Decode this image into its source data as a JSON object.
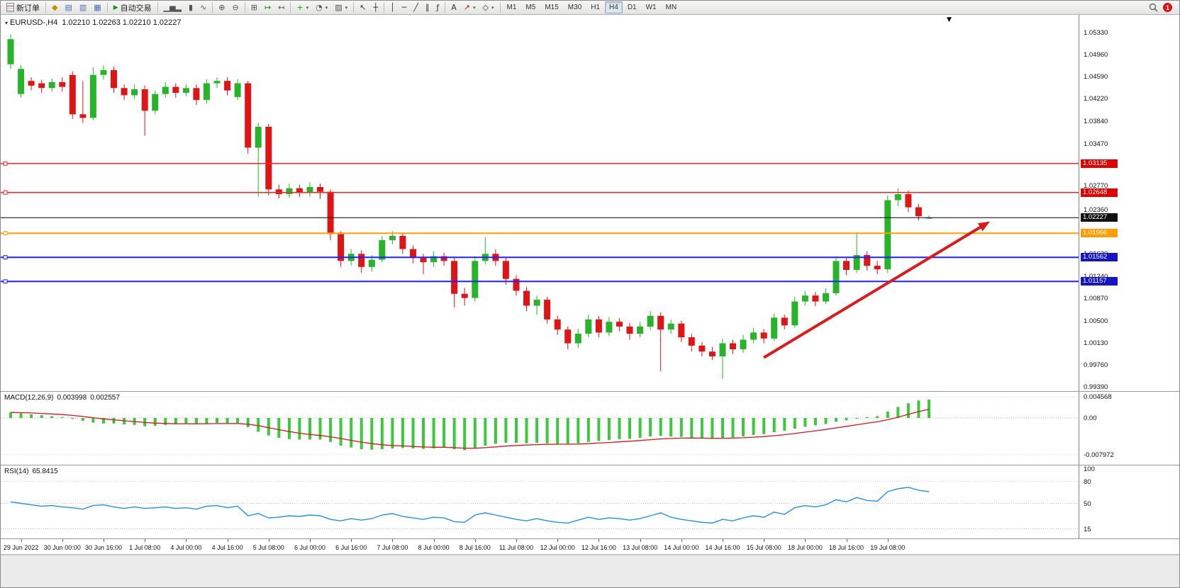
{
  "toolbar": {
    "new_order_label": "新订单",
    "auto_trading_label": "自动交易",
    "notification_badge": "1",
    "timeframes": [
      "M1",
      "M5",
      "M15",
      "M30",
      "H1",
      "H4",
      "D1",
      "W1",
      "MN"
    ],
    "active_timeframe": "H4",
    "icon_groups": [
      [
        {
          "name": "charts-icon",
          "glyph": "◆",
          "color": "#c09000"
        },
        {
          "name": "market-watch-icon",
          "gl yph_note": "",
          "glyph": "▤",
          "color": "#4a6fb0"
        },
        {
          "name": "data-window-icon",
          "glyph": "▥",
          "color": "#4a6fb0"
        },
        {
          "name": "navigator-icon",
          "glyph": "▦",
          "color": "#4a6fb0"
        }
      ],
      [
        {
          "name": "bar-chart-icon",
          "glyph": "▁▅▂",
          "color": "#555555"
        },
        {
          "name": "candlestick-icon",
          "glyph": "▮",
          "color": "#555555"
        },
        {
          "name": "line-chart-icon",
          "glyph": "∿",
          "color": "#555555"
        }
      ],
      [
        {
          "name": "zoom-in-icon",
          "glyph": "⊕",
          "color": "#555555"
        },
        {
          "name": "zoom-out-icon",
          "glyph": "⊖",
          "color": "#555555"
        }
      ],
      [
        {
          "name": "tile-windows-icon",
          "glyph": "⊞",
          "color": "#555555"
        },
        {
          "name": "auto-scroll-icon",
          "glyph": "↦",
          "color": "#2a7a2a"
        },
        {
          "name": "chart-shift-icon",
          "glyph": "↤",
          "color": "#555555"
        }
      ],
      [
        {
          "name": "indicators-icon",
          "glyph": "+",
          "color": "#1a9a1a",
          "dropdown": true
        },
        {
          "name": "periods-icon",
          "glyph": "◔",
          "color": "#555555",
          "dropdown": true
        },
        {
          "name": "templates-icon",
          "glyph": "▨",
          "color": "#555555",
          "dropdown": true
        }
      ],
      [
        {
          "name": "cursor-icon",
          "glyph": "↖",
          "color": "#333333"
        },
        {
          "name": "crosshair-icon",
          "glyph": "┼",
          "color": "#333333"
        }
      ],
      [
        {
          "name": "vertical-line-icon",
          "glyph": "│",
          "color": "#333333"
        },
        {
          "name": "horizontal-line-icon",
          "glyph": "─",
          "color": "#333333"
        },
        {
          "name": "trendline-icon",
          "glyph": "╱",
          "color": "#333333"
        },
        {
          "name": "channel-icon",
          "glyph": "∥",
          "color": "#333333"
        },
        {
          "name": "fibonacci-icon",
          "glyph": "ƒ",
          "color": "#333333"
        }
      ],
      [
        {
          "name": "text-icon",
          "glyph": "A",
          "color": "#333333"
        },
        {
          "name": "arrows-icon",
          "glyph": "↗",
          "color": "#aa2222",
          "dropdown": true
        },
        {
          "name": "shapes-icon",
          "glyph": "◇",
          "color": "#333333",
          "dropdown": true
        }
      ]
    ]
  },
  "chart": {
    "title_symbol": "EURUSD-,H4",
    "title_ohlc": "1.02210 1.02263 1.02210 1.02227"
  },
  "chart_data": {
    "type": "candlestick",
    "symbol": "EURUSD-",
    "timeframe": "H4",
    "current_ohlc": {
      "open": 1.0221,
      "high": 1.02263,
      "low": 1.0221,
      "close": 1.02227
    },
    "view": {
      "price_top": 1.0533,
      "price_bottom": 0.9939
    },
    "colors": {
      "bull": "#28b428",
      "bear": "#e01414",
      "macd_bar": "#3cc83c",
      "macd_signal": "#e01414",
      "rsi": "#1e90ff",
      "arrow": "#e01818"
    },
    "y_axis_labels": [
      "1.05330",
      "1.04960",
      "1.04590",
      "1.04220",
      "1.03840",
      "1.03470",
      "1.02770",
      "1.02360",
      "1.01620",
      "1.01240",
      "1.00870",
      "1.00500",
      "1.00130",
      "0.99760",
      "0.99390"
    ],
    "x_axis_labels": [
      "29 Jun 2022",
      "30 Jun 00:00",
      "30 Jun 16:00",
      "1 Jul 08:00",
      "4 Jul 00:00",
      "4 Jul 16:00",
      "5 Jul 08:00",
      "6 Jul 00:00",
      "6 Jul 16:00",
      "7 Jul 08:00",
      "8 Jul 00:00",
      "8 Jul 16:00",
      "11 Jul 08:00",
      "12 Jul 00:00",
      "12 Jul 16:00",
      "13 Jul 08:00",
      "14 Jul 00:00",
      "14 Jul 16:00",
      "15 Jul 08:00",
      "18 Jul 00:00",
      "18 Jul 16:00",
      "19 Jul 08:00"
    ],
    "horizontal_lines": [
      {
        "price": 1.03135,
        "color": "#ff2020",
        "width": 1.5,
        "handle": true
      },
      {
        "price": 1.02648,
        "color": "#ff2020",
        "width": 1.5,
        "handle": true
      },
      {
        "price": 1.01966,
        "color": "#ffa000",
        "width": 2,
        "handle": true
      },
      {
        "price": 1.01562,
        "color": "#2020ff",
        "width": 2,
        "handle": true
      },
      {
        "price": 1.01157,
        "color": "#2020ff",
        "width": 2,
        "handle": true
      },
      {
        "price": 1.02227,
        "color": "#000000",
        "width": 1,
        "handle": false
      }
    ],
    "price_badges": [
      {
        "text": "1.03135",
        "price": 1.03135,
        "bg": "#e00000"
      },
      {
        "text": "1.02648",
        "price": 1.02648,
        "bg": "#e00000"
      },
      {
        "text": "1.02227",
        "price": 1.02227,
        "bg": "#111111"
      },
      {
        "text": "1.01966",
        "price": 1.01966,
        "bg": "#ff9c00"
      },
      {
        "text": "1.01562",
        "price": 1.01562,
        "bg": "#1414c8"
      },
      {
        "text": "1.01157",
        "price": 1.01157,
        "bg": "#1414c8"
      }
    ],
    "trend_arrow": {
      "from_candle": 73,
      "from_price": 0.9988,
      "to_candle": 94.5,
      "to_price": 1.0212,
      "color": "#e01818",
      "width": 4
    },
    "candles_ohlc": [
      [
        1.048,
        1.053,
        1.0472,
        1.0522
      ],
      [
        1.043,
        1.0478,
        1.0424,
        1.0472
      ],
      [
        1.0452,
        1.0458,
        1.0436,
        1.0444
      ],
      [
        1.0448,
        1.0454,
        1.0432,
        1.044
      ],
      [
        1.044,
        1.0456,
        1.0434,
        1.045
      ],
      [
        1.045,
        1.0458,
        1.0434,
        1.0442
      ],
      [
        1.0462,
        1.0468,
        1.0388,
        1.0396
      ],
      [
        1.0396,
        1.0452,
        1.0382,
        1.039
      ],
      [
        1.039,
        1.0475,
        1.0386,
        1.0462
      ],
      [
        1.0462,
        1.0478,
        1.0454,
        1.047
      ],
      [
        1.047,
        1.0476,
        1.0432,
        1.044
      ],
      [
        1.044,
        1.0446,
        1.042,
        1.0428
      ],
      [
        1.0428,
        1.0446,
        1.0422,
        1.0438
      ],
      [
        1.0438,
        1.0444,
        1.036,
        1.0402
      ],
      [
        1.0402,
        1.0436,
        1.0396,
        1.043
      ],
      [
        1.043,
        1.045,
        1.0424,
        1.0442
      ],
      [
        1.0442,
        1.0448,
        1.0424,
        1.0432
      ],
      [
        1.0432,
        1.0446,
        1.0426,
        1.044
      ],
      [
        1.044,
        1.0446,
        1.0412,
        1.042
      ],
      [
        1.042,
        1.0455,
        1.0414,
        1.0448
      ],
      [
        1.0448,
        1.0458,
        1.044,
        1.0452
      ],
      [
        1.0452,
        1.0458,
        1.0428,
        1.0436
      ],
      [
        1.0425,
        1.0455,
        1.042,
        1.0448
      ],
      [
        1.0448,
        1.0452,
        1.033,
        1.034
      ],
      [
        1.034,
        1.0382,
        1.0258,
        1.0375
      ],
      [
        1.0375,
        1.038,
        1.026,
        1.027
      ],
      [
        1.027,
        1.0278,
        1.0255,
        1.0262
      ],
      [
        1.0262,
        1.028,
        1.0256,
        1.0272
      ],
      [
        1.0272,
        1.0278,
        1.0257,
        1.0264
      ],
      [
        1.0264,
        1.0282,
        1.0258,
        1.0274
      ],
      [
        1.0274,
        1.028,
        1.0254,
        1.0266
      ],
      [
        1.0266,
        1.027,
        1.0185,
        1.0195
      ],
      [
        1.0195,
        1.02,
        1.014,
        1.015
      ],
      [
        1.015,
        1.017,
        1.0142,
        1.0162
      ],
      [
        1.0162,
        1.0168,
        1.013,
        1.014
      ],
      [
        1.014,
        1.016,
        1.0132,
        1.0152
      ],
      [
        1.0152,
        1.0192,
        1.0148,
        1.0185
      ],
      [
        1.0185,
        1.02,
        1.0178,
        1.0192
      ],
      [
        1.0192,
        1.0196,
        1.0162,
        1.017
      ],
      [
        1.017,
        1.0176,
        1.0146,
        1.0155
      ],
      [
        1.0155,
        1.0162,
        1.0128,
        1.0148
      ],
      [
        1.0148,
        1.0166,
        1.014,
        1.0158
      ],
      [
        1.0158,
        1.0164,
        1.0142,
        1.015
      ],
      [
        1.015,
        1.0156,
        1.0072,
        1.0095
      ],
      [
        1.0095,
        1.0105,
        1.0075,
        1.0088
      ],
      [
        1.0088,
        1.0158,
        1.0082,
        1.015
      ],
      [
        1.015,
        1.019,
        1.0144,
        1.0162
      ],
      [
        1.0162,
        1.017,
        1.0142,
        1.015
      ],
      [
        1.015,
        1.0155,
        1.011,
        1.012
      ],
      [
        1.012,
        1.0126,
        1.0092,
        1.01
      ],
      [
        1.01,
        1.0106,
        1.0066,
        1.0075
      ],
      [
        1.0075,
        1.0092,
        1.006,
        1.0085
      ],
      [
        1.0085,
        1.009,
        1.0045,
        1.0052
      ],
      [
        1.0052,
        1.0058,
        1.0026,
        1.0035
      ],
      [
        1.0035,
        1.004,
        1.0002,
        1.0012
      ],
      [
        1.0012,
        1.0036,
        1.0004,
        1.0028
      ],
      [
        1.0028,
        1.006,
        1.0022,
        1.0052
      ],
      [
        1.0052,
        1.0058,
        1.0022,
        1.003
      ],
      [
        1.003,
        1.0056,
        1.0024,
        1.0048
      ],
      [
        1.0048,
        1.0054,
        1.0032,
        1.004
      ],
      [
        1.004,
        1.0046,
        1.0018,
        1.0028
      ],
      [
        1.0028,
        1.0048,
        1.0022,
        1.004
      ],
      [
        1.004,
        1.0066,
        1.0034,
        1.0058
      ],
      [
        1.0058,
        1.0064,
        0.9965,
        1.0035
      ],
      [
        1.0035,
        1.0052,
        1.0028,
        1.0045
      ],
      [
        1.0045,
        1.005,
        1.0014,
        1.0022
      ],
      [
        1.0022,
        1.0028,
        0.9998,
        1.0008
      ],
      [
        1.0008,
        1.0014,
        0.999,
        0.9998
      ],
      [
        0.9998,
        1.0006,
        0.9984,
        0.999
      ],
      [
        0.999,
        1.002,
        0.9952,
        1.0012
      ],
      [
        1.0012,
        1.0018,
        0.9994,
        1.0002
      ],
      [
        1.0002,
        1.0026,
        0.9996,
        1.0018
      ],
      [
        1.0018,
        1.0038,
        1.0012,
        1.003
      ],
      [
        1.003,
        1.0036,
        1.0012,
        1.002
      ],
      [
        1.002,
        1.0062,
        1.0016,
        1.0055
      ],
      [
        1.0055,
        1.006,
        1.0035,
        1.0042
      ],
      [
        1.0042,
        1.009,
        1.0038,
        1.0082
      ],
      [
        1.0082,
        1.01,
        1.0075,
        1.0092
      ],
      [
        1.0092,
        1.0098,
        1.0074,
        1.0082
      ],
      [
        1.0082,
        1.0104,
        1.0078,
        1.0096
      ],
      [
        1.0096,
        1.0158,
        1.0092,
        1.015
      ],
      [
        1.015,
        1.0156,
        1.0126,
        1.0135
      ],
      [
        1.0135,
        1.0198,
        1.013,
        1.016
      ],
      [
        1.016,
        1.0166,
        1.0134,
        1.0142
      ],
      [
        1.0142,
        1.015,
        1.0128,
        1.0136
      ],
      [
        1.0136,
        1.026,
        1.013,
        1.0252
      ],
      [
        1.0252,
        1.0272,
        1.0242,
        1.0262
      ],
      [
        1.0262,
        1.0268,
        1.0232,
        1.024
      ],
      [
        1.024,
        1.0246,
        1.0218,
        1.0225
      ],
      [
        1.0221,
        1.02263,
        1.0221,
        1.02227
      ]
    ],
    "macd": {
      "label": "MACD(12,26,9)",
      "main_value": "0.003998",
      "signal_value": "0.002557",
      "axis": [
        {
          "text": "0.004568",
          "value": 0.004568
        },
        {
          "text": "0.00",
          "value": 0
        },
        {
          "text": "-0.007972",
          "value": -0.007972
        }
      ],
      "histogram": [
        0.0012,
        0.001,
        0.0008,
        0.0006,
        0.0004,
        0.0002,
        -0.0002,
        -0.0006,
        -0.001,
        -0.0012,
        -0.0012,
        -0.0014,
        -0.0015,
        -0.0018,
        -0.0017,
        -0.0015,
        -0.0014,
        -0.0013,
        -0.0013,
        -0.0012,
        -0.0011,
        -0.0012,
        -0.0011,
        -0.002,
        -0.003,
        -0.0038,
        -0.0043,
        -0.0046,
        -0.0047,
        -0.0047,
        -0.0047,
        -0.0052,
        -0.006,
        -0.0064,
        -0.0068,
        -0.0069,
        -0.0068,
        -0.0066,
        -0.0065,
        -0.0066,
        -0.0067,
        -0.0066,
        -0.0064,
        -0.0068,
        -0.007,
        -0.0066,
        -0.006,
        -0.0056,
        -0.0054,
        -0.0054,
        -0.0055,
        -0.0054,
        -0.0055,
        -0.0056,
        -0.0057,
        -0.0055,
        -0.0052,
        -0.005,
        -0.0048,
        -0.0046,
        -0.0045,
        -0.0043,
        -0.004,
        -0.0039,
        -0.004,
        -0.0041,
        -0.0043,
        -0.0044,
        -0.0045,
        -0.0044,
        -0.0042,
        -0.004,
        -0.0037,
        -0.0035,
        -0.0031,
        -0.0028,
        -0.0023,
        -0.0019,
        -0.0016,
        -0.0013,
        -0.0008,
        -0.0005,
        -0.0001,
        0.0002,
        0.0004,
        0.0014,
        0.0024,
        0.0032,
        0.0038,
        0.004
      ]
    },
    "rsi": {
      "label": "RSI(14)",
      "value": "65.8415",
      "levels": [
        {
          "text": "100",
          "value": 100
        },
        {
          "text": "80",
          "value": 80
        },
        {
          "text": "50",
          "value": 50
        },
        {
          "text": "15",
          "value": 15
        }
      ],
      "series": [
        52,
        50,
        48,
        46,
        47,
        45,
        44,
        42,
        47,
        48,
        45,
        43,
        45,
        43,
        44,
        45,
        43,
        44,
        42,
        46,
        47,
        44,
        46,
        33,
        36,
        30,
        31,
        33,
        32,
        34,
        33,
        28,
        26,
        29,
        27,
        29,
        34,
        36,
        32,
        30,
        28,
        31,
        30,
        25,
        24,
        34,
        37,
        34,
        31,
        28,
        26,
        29,
        26,
        24,
        23,
        27,
        31,
        28,
        30,
        29,
        27,
        29,
        33,
        37,
        31,
        28,
        26,
        24,
        23,
        28,
        26,
        30,
        33,
        31,
        38,
        35,
        44,
        47,
        45,
        48,
        55,
        52,
        58,
        54,
        53,
        66,
        70,
        72,
        68,
        65.84
      ]
    }
  }
}
